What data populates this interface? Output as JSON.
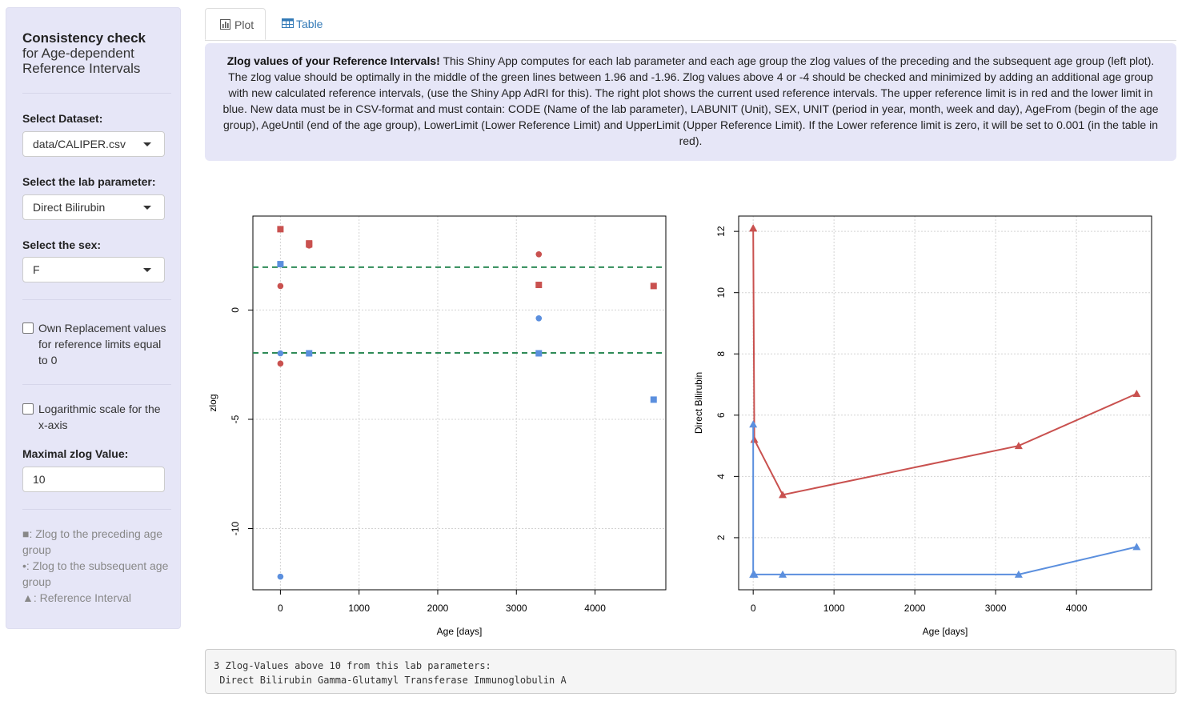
{
  "sidebar": {
    "title_bold": "Consistency check",
    "title_line2": "for Age-dependent",
    "title_line3": "Reference Intervals",
    "dataset_label": "Select Dataset:",
    "dataset_value": "data/CALIPER.csv",
    "param_label": "Select the lab parameter:",
    "param_value": "Direct Bilirubin",
    "sex_label": "Select the sex:",
    "sex_value": "F",
    "own_replacement_label": "Own Replacement values for reference limits equal to 0",
    "log_scale_label": "Logarithmic scale for the x-axis",
    "max_zlog_label": "Maximal zlog Value:",
    "max_zlog_value": "10",
    "legend": {
      "preceding": "■: Zlog to the preceding age group",
      "subsequent": "•: Zlog to the subsequent age group",
      "reference": "▲: Reference Interval"
    }
  },
  "tabs": [
    {
      "label": "Plot",
      "icon": "bar-chart-icon"
    },
    {
      "label": "Table",
      "icon": "table-icon"
    }
  ],
  "info": {
    "bold": "Zlog values of your Reference Intervals!",
    "text": " This Shiny App computes for each lab parameter and each age group the zlog values of the preceding and the subsequent age group (left plot). The zlog value should be optimally in the middle of the green lines between 1.96 and -1.96. Zlog values above 4 or -4 should be checked and minimized by adding an additional age group with new calculated reference intervals, (use the Shiny App AdRI for this). The right plot shows the current used reference intervals. The upper reference limit is in red and the lower limit in blue. New data must be in CSV-format and must contain: CODE (Name of the lab parameter), LABUNIT (Unit), SEX, UNIT (period in year, month, week and day), AgeFrom (begin of the age group), AgeUntil (end of the age group), LowerLimit (Lower Reference Limit) and UpperLimit (Upper Reference Limit). If the Lower reference limit is zero, it will be set to 0.001 (in the table in red)."
  },
  "colors": {
    "upper": "#c9514f",
    "lower": "#5b8fde",
    "threshold": "#2e8b57"
  },
  "chart_data": [
    {
      "type": "scatter",
      "xlabel": "Age [days]",
      "ylabel": "zlog",
      "xlim": [
        -350,
        4900
      ],
      "ylim": [
        -12.8,
        4.3
      ],
      "xticks": [
        0,
        1000,
        2000,
        3000,
        4000
      ],
      "yticks": [
        -10,
        -5,
        0
      ],
      "hlines": [
        1.96,
        -1.96
      ],
      "grid": true,
      "series": [
        {
          "shape": "square",
          "color": "#c9514f",
          "points": [
            [
              0,
              3.7
            ],
            [
              365,
              3.05
            ],
            [
              365,
              3.0
            ],
            [
              3285,
              1.15
            ],
            [
              4745,
              1.1
            ]
          ]
        },
        {
          "shape": "circle",
          "color": "#c9514f",
          "points": [
            [
              0,
              1.1
            ],
            [
              0,
              -2.45
            ],
            [
              365,
              2.95
            ],
            [
              3285,
              2.55
            ]
          ]
        },
        {
          "shape": "square",
          "color": "#5b8fde",
          "points": [
            [
              0,
              2.1
            ],
            [
              365,
              -1.98
            ],
            [
              3285,
              -1.98
            ],
            [
              4745,
              -4.1
            ]
          ]
        },
        {
          "shape": "circle",
          "color": "#5b8fde",
          "points": [
            [
              0,
              -1.98
            ],
            [
              0,
              -12.2
            ],
            [
              3285,
              -0.38
            ]
          ]
        }
      ]
    },
    {
      "type": "line",
      "xlabel": "Age [days]",
      "ylabel": "Direct Bilirubin",
      "xlim": [
        -180,
        4930
      ],
      "ylim": [
        0.3,
        12.5
      ],
      "xticks": [
        0,
        1000,
        2000,
        3000,
        4000
      ],
      "yticks": [
        2,
        4,
        6,
        8,
        10,
        12
      ],
      "grid": true,
      "series": [
        {
          "color": "#c9514f",
          "x": [
            0,
            0,
            14,
            365,
            3285,
            4745
          ],
          "y": [
            12.1,
            12.1,
            5.2,
            3.4,
            5.0,
            6.7
          ]
        },
        {
          "color": "#5b8fde",
          "x": [
            0,
            0,
            14,
            365,
            3285,
            4745
          ],
          "y": [
            5.7,
            0.8,
            0.8,
            0.8,
            0.8,
            1.7
          ]
        }
      ]
    }
  ],
  "output": {
    "line1": "3 Zlog-Values above 10 from this lab parameters:",
    "line2": " Direct Bilirubin Gamma-Glutamyl Transferase Immunoglobulin A"
  }
}
